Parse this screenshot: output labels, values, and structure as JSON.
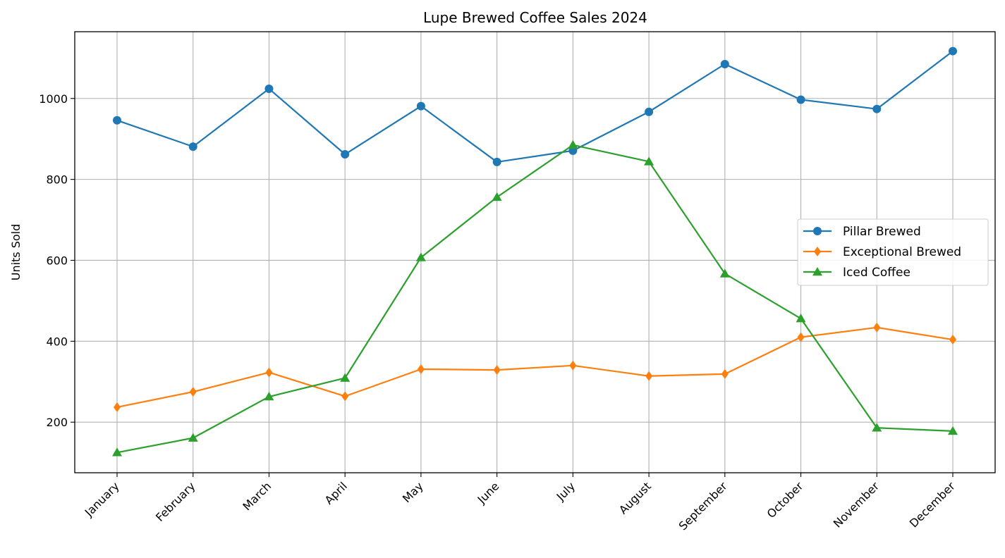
{
  "chart_data": {
    "type": "line",
    "title": "Lupe Brewed Coffee Sales 2024",
    "xlabel": "",
    "ylabel": "Units Sold",
    "categories": [
      "January",
      "February",
      "March",
      "April",
      "May",
      "June",
      "July",
      "August",
      "September",
      "October",
      "November",
      "December"
    ],
    "ylim": [
      75,
      1165
    ],
    "yticks": [
      200,
      400,
      600,
      800,
      1000
    ],
    "grid": true,
    "legend_position": "center-right",
    "series": [
      {
        "name": "Pillar Brewed",
        "color": "#1f77b4",
        "marker": "circle",
        "values": [
          946,
          881,
          1024,
          862,
          981,
          843,
          871,
          967,
          1085,
          997,
          974,
          1117
        ]
      },
      {
        "name": "Exceptional Brewed",
        "color": "#ff7f0e",
        "marker": "diamond",
        "values": [
          237,
          275,
          323,
          264,
          331,
          329,
          340,
          314,
          319,
          410,
          434,
          404
        ]
      },
      {
        "name": "Iced Coffee",
        "color": "#2ca02c",
        "marker": "triangle",
        "values": [
          125,
          161,
          263,
          309,
          607,
          756,
          885,
          844,
          567,
          456,
          186,
          178
        ]
      }
    ]
  }
}
